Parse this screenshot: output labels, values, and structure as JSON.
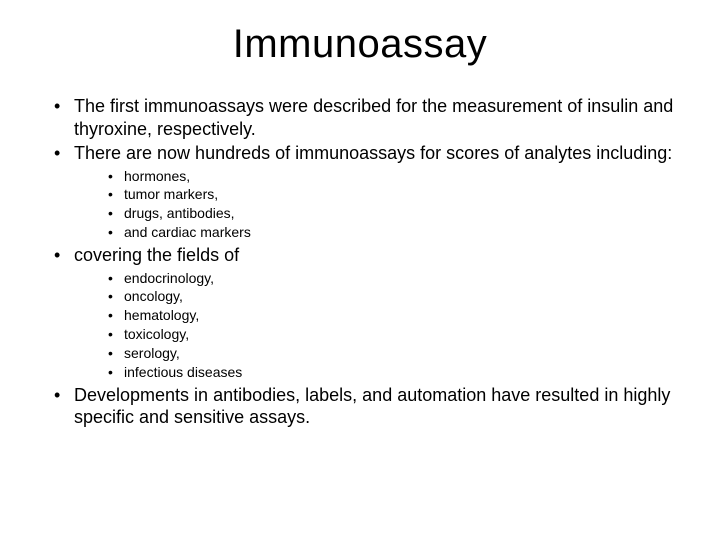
{
  "title": "Immunoassay",
  "bullets": {
    "b1": "The first immunoassays were described for the measurement of insulin and thyroxine, respectively.",
    "b2": "There are now hundreds of immunoassays for scores of analytes including:",
    "b2_sub": {
      "s1": "hormones,",
      "s2": "tumor markers,",
      "s3": "drugs, antibodies,",
      "s4": "and cardiac markers"
    },
    "b3": "covering the fields of",
    "b3_sub": {
      "s1": "endocrinology,",
      "s2": "oncology,",
      "s3": "hematology,",
      "s4": "toxicology,",
      "s5": "serology,",
      "s6": "infectious diseases"
    },
    "b4": "Developments in antibodies, labels, and automation have resulted in highly specific and sensitive assays."
  },
  "style": {
    "background_color": "#ffffff",
    "text_color": "#000000",
    "title_fontsize": 40,
    "body_fontsize": 18,
    "sub_fontsize": 14,
    "font_family": "Arial"
  }
}
